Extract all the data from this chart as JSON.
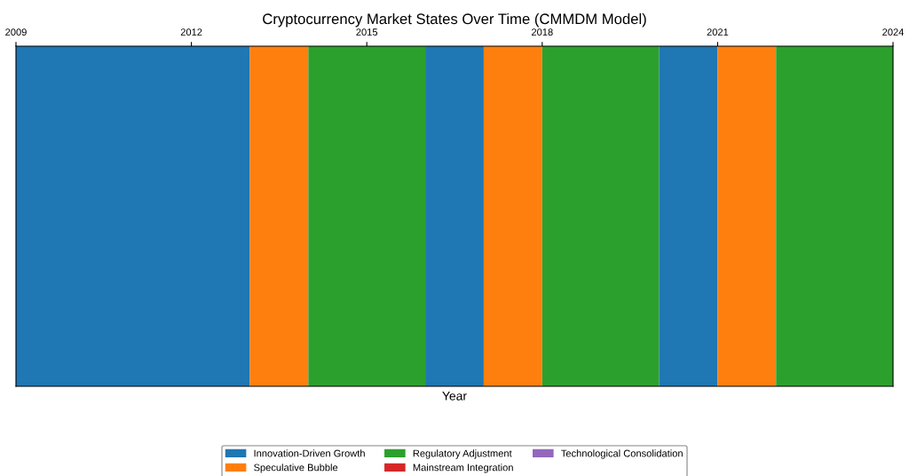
{
  "chart_data": {
    "type": "bar",
    "orientation": "horizontal",
    "title": "Cryptocurrency Market States Over Time (CMMDM Model)",
    "xlabel": "Year",
    "categories": [
      null
    ],
    "xlim": [
      2009,
      2024
    ],
    "xticks": [
      2009,
      2012,
      2015,
      2018,
      2021,
      2024
    ],
    "tick_labels": "x",
    "legend": "bottom",
    "series": [
      {
        "name": "Innovation-Driven Growth",
        "color": "#1f77b4",
        "base": [
          2009
        ],
        "values": [
          4
        ]
      },
      {
        "name": "Speculative Bubble",
        "color": "#ff7f0e",
        "base": [
          2013
        ],
        "values": [
          1
        ]
      },
      {
        "name": "Regulatory Adjustment",
        "color": "#2ca02c",
        "base": [
          2014
        ],
        "values": [
          2
        ]
      },
      {
        "color": "#1f77b4",
        "base": [
          2016
        ],
        "values": [
          1
        ]
      },
      {
        "color": "#ff7f0e",
        "base": [
          2017
        ],
        "values": [
          1
        ]
      },
      {
        "color": "#2ca02c",
        "base": [
          2018
        ],
        "values": [
          2
        ]
      },
      {
        "color": "#1f77b4",
        "base": [
          2020
        ],
        "values": [
          1
        ]
      },
      {
        "color": "#ff7f0e",
        "base": [
          2021
        ],
        "values": [
          1
        ]
      },
      {
        "color": "#2ca02c",
        "base": [
          2022
        ],
        "values": [
          2
        ]
      },
      {
        "name": "Mainstream Integration",
        "color": "#d62728",
        "values": [
          null
        ]
      },
      {
        "name": "Technological Consolidation",
        "color": "#9467bd",
        "values": [
          null
        ]
      }
    ]
  }
}
